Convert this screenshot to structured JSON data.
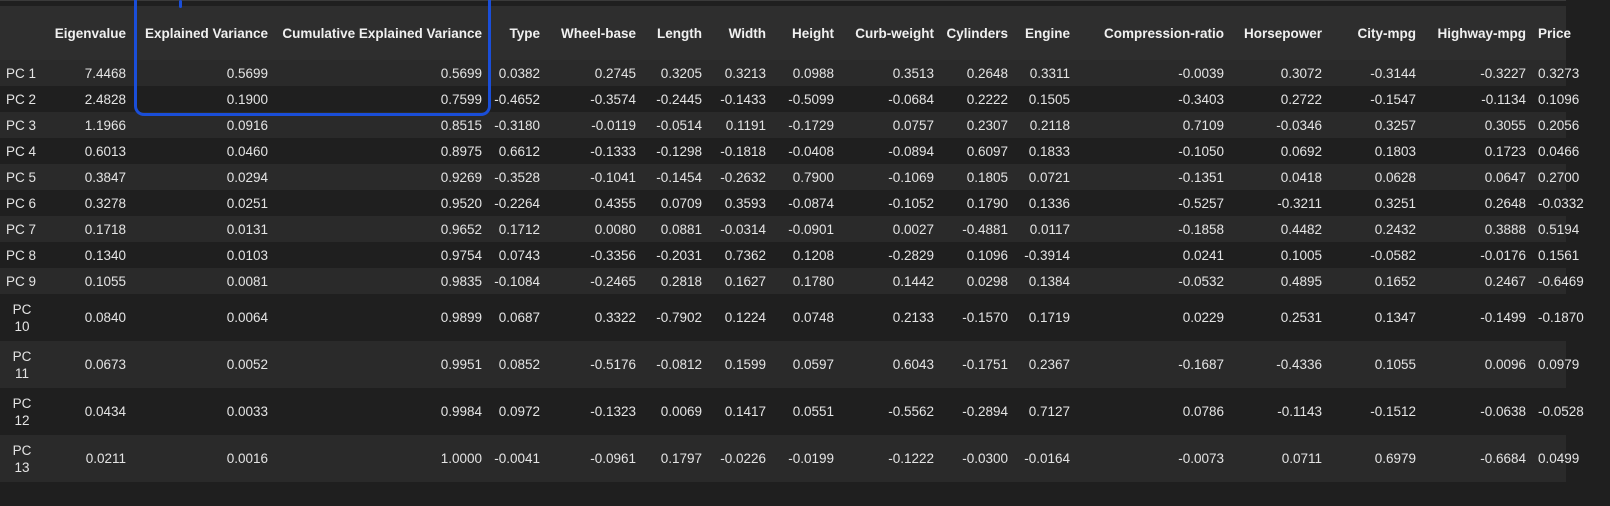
{
  "table": {
    "headers": [
      "",
      "Eigenvalue",
      "Explained Variance",
      "Cumulative Explained Variance",
      "Type",
      "Wheel-base",
      "Length",
      "Width",
      "Height",
      "Curb-weight",
      "Cylinders",
      "Engine",
      "Compression-ratio",
      "Horsepower",
      "City-mpg",
      "Highway-mpg",
      "Price"
    ],
    "rows": [
      [
        "PC 1",
        "7.4468",
        "0.5699",
        "0.5699",
        "0.0382",
        "0.2745",
        "0.3205",
        "0.3213",
        "0.0988",
        "0.3513",
        "0.2648",
        "0.3311",
        "-0.0039",
        "0.3072",
        "-0.3144",
        "-0.3227",
        "0.3273"
      ],
      [
        "PC 2",
        "2.4828",
        "0.1900",
        "0.7599",
        "-0.4652",
        "-0.3574",
        "-0.2445",
        "-0.1433",
        "-0.5099",
        "-0.0684",
        "0.2222",
        "0.1505",
        "-0.3403",
        "0.2722",
        "-0.1547",
        "-0.1134",
        "0.1096"
      ],
      [
        "PC 3",
        "1.1966",
        "0.0916",
        "0.8515",
        "-0.3180",
        "-0.0119",
        "-0.0514",
        "0.1191",
        "-0.1729",
        "0.0757",
        "0.2307",
        "0.2118",
        "0.7109",
        "-0.0346",
        "0.3257",
        "0.3055",
        "0.2056"
      ],
      [
        "PC 4",
        "0.6013",
        "0.0460",
        "0.8975",
        "0.6612",
        "-0.1333",
        "-0.1298",
        "-0.1818",
        "-0.0408",
        "-0.0894",
        "0.6097",
        "0.1833",
        "-0.1050",
        "0.0692",
        "0.1803",
        "0.1723",
        "0.0466"
      ],
      [
        "PC 5",
        "0.3847",
        "0.0294",
        "0.9269",
        "-0.3528",
        "-0.1041",
        "-0.1454",
        "-0.2632",
        "0.7900",
        "-0.1069",
        "0.1805",
        "0.0721",
        "-0.1351",
        "0.0418",
        "0.0628",
        "0.0647",
        "0.2700"
      ],
      [
        "PC 6",
        "0.3278",
        "0.0251",
        "0.9520",
        "-0.2264",
        "0.4355",
        "0.0709",
        "0.3593",
        "-0.0874",
        "-0.1052",
        "0.1790",
        "0.1336",
        "-0.5257",
        "-0.3211",
        "0.3251",
        "0.2648",
        "-0.0332"
      ],
      [
        "PC 7",
        "0.1718",
        "0.0131",
        "0.9652",
        "0.1712",
        "0.0080",
        "0.0881",
        "-0.0314",
        "-0.0901",
        "0.0027",
        "-0.4881",
        "0.0117",
        "-0.1858",
        "0.4482",
        "0.2432",
        "0.3888",
        "0.5194"
      ],
      [
        "PC 8",
        "0.1340",
        "0.0103",
        "0.9754",
        "0.0743",
        "-0.3356",
        "-0.2031",
        "0.7362",
        "0.1208",
        "-0.2829",
        "0.1096",
        "-0.3914",
        "0.0241",
        "0.1005",
        "-0.0582",
        "-0.0176",
        "0.1561"
      ],
      [
        "PC 9",
        "0.1055",
        "0.0081",
        "0.9835",
        "-0.1084",
        "-0.2465",
        "0.2818",
        "0.1627",
        "0.1780",
        "0.1442",
        "0.0298",
        "0.1384",
        "-0.0532",
        "0.4895",
        "0.1652",
        "0.2467",
        "-0.6469"
      ],
      [
        "PC 10",
        "0.0840",
        "0.0064",
        "0.9899",
        "0.0687",
        "0.3322",
        "-0.7902",
        "0.1224",
        "0.0748",
        "0.2133",
        "-0.1570",
        "0.1719",
        "0.0229",
        "0.2531",
        "0.1347",
        "-0.1499",
        "-0.1870"
      ],
      [
        "PC 11",
        "0.0673",
        "0.0052",
        "0.9951",
        "0.0852",
        "-0.5176",
        "-0.0812",
        "0.1599",
        "0.0597",
        "0.6043",
        "-0.1751",
        "0.2367",
        "-0.1687",
        "-0.4336",
        "0.1055",
        "0.0096",
        "0.0979"
      ],
      [
        "PC 12",
        "0.0434",
        "0.0033",
        "0.9984",
        "0.0972",
        "-0.1323",
        "0.0069",
        "0.1417",
        "0.0551",
        "-0.5562",
        "-0.2894",
        "0.7127",
        "0.0786",
        "-0.1143",
        "-0.1512",
        "-0.0638",
        "-0.0528"
      ],
      [
        "PC 13",
        "0.0211",
        "0.0016",
        "1.0000",
        "-0.0041",
        "-0.0961",
        "0.1797",
        "-0.0226",
        "-0.0199",
        "-0.1222",
        "-0.0300",
        "-0.0164",
        "-0.0073",
        "0.0711",
        "0.6979",
        "-0.6684",
        "0.0499"
      ]
    ]
  },
  "annotation": {
    "color": "#1a4ed8"
  }
}
